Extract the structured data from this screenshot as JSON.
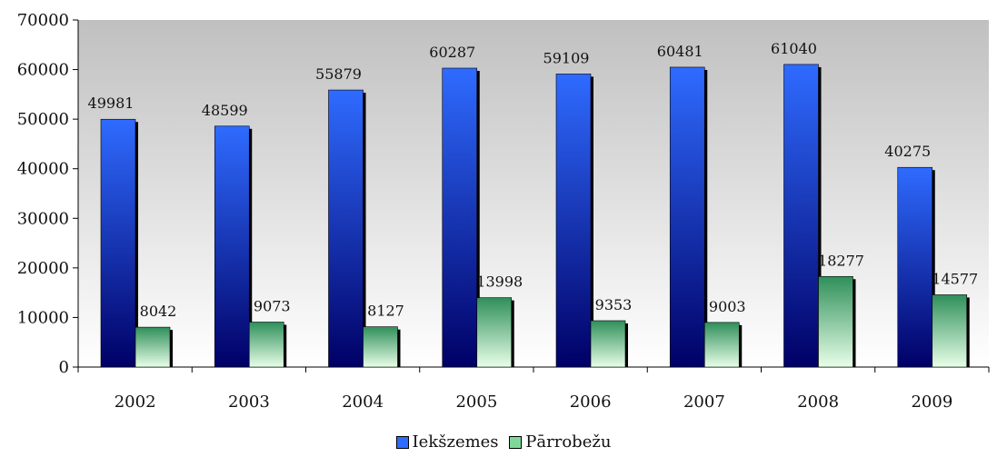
{
  "chart_data": {
    "type": "bar",
    "categories": [
      "2002",
      "2003",
      "2004",
      "2005",
      "2006",
      "2007",
      "2008",
      "2009"
    ],
    "series": [
      {
        "name": "Iekšzemes",
        "values": [
          49981,
          48599,
          55879,
          60287,
          59109,
          60481,
          61040,
          40275
        ],
        "color": "#2f6bff"
      },
      {
        "name": "Pārrobežu",
        "values": [
          8042,
          9073,
          8127,
          13998,
          9353,
          9003,
          18277,
          14577
        ],
        "color": "#7fd89a"
      }
    ],
    "ylim": [
      0,
      70000
    ],
    "y_ticks": [
      "0",
      "10000",
      "20000",
      "30000",
      "40000",
      "50000",
      "60000",
      "70000"
    ],
    "data_labels": true,
    "legend_position": "bottom",
    "grid": false,
    "colors": {
      "plot_top": "#c0c0c0",
      "plot_bottom": "#ffffff",
      "dark_blue": "#000066",
      "light_green": "#e8ffe8",
      "dark_green": "#2f8f5a"
    }
  }
}
